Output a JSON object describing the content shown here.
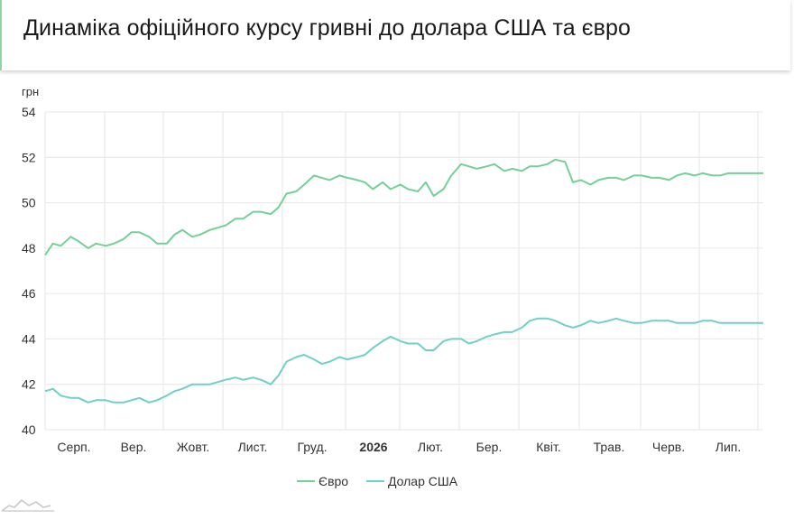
{
  "header": {
    "title": "Динаміка офіційного курсу гривні до долара США та євро"
  },
  "chart_data": {
    "type": "line",
    "title": "Динаміка офіційного курсу гривні до долара США та євро",
    "ylabel": "грн",
    "ylim": [
      40,
      54
    ],
    "yticks": [
      40,
      42,
      44,
      46,
      48,
      50,
      52,
      54
    ],
    "x_tick_labels": [
      "Серп.",
      "Вер.",
      "Жовт.",
      "Лист.",
      "Груд.",
      "2026",
      "Лют.",
      "Бер.",
      "Квіт.",
      "Трав.",
      "Черв.",
      "Лип."
    ],
    "x": [
      0,
      4,
      8,
      13,
      17,
      22,
      26,
      31,
      35,
      40,
      44,
      48,
      53,
      57,
      62,
      66,
      70,
      75,
      79,
      84,
      88,
      92,
      97,
      101,
      106,
      110,
      115,
      119,
      123,
      128,
      132,
      137,
      141,
      145,
      150,
      154,
      159,
      163,
      167,
      172,
      176,
      181,
      185,
      190,
      194,
      198,
      203,
      207,
      212,
      216,
      220,
      225,
      229,
      234,
      238,
      243,
      247,
      251,
      256,
      260,
      265,
      269,
      273,
      278,
      282,
      287,
      291,
      295,
      300,
      304,
      309,
      313,
      318,
      322,
      326,
      331,
      335,
      340,
      344,
      348,
      353,
      357,
      362,
      366
    ],
    "grid": true,
    "legend_position": "bottom-center",
    "series": [
      {
        "name": "Євро",
        "color": "#74cf99",
        "values": [
          47.7,
          48.2,
          48.1,
          48.5,
          48.3,
          48.0,
          48.2,
          48.1,
          48.2,
          48.4,
          48.7,
          48.7,
          48.5,
          48.2,
          48.2,
          48.6,
          48.8,
          48.5,
          48.6,
          48.8,
          48.9,
          49.0,
          49.3,
          49.3,
          49.6,
          49.6,
          49.5,
          49.8,
          50.4,
          50.5,
          50.8,
          51.2,
          51.1,
          51.0,
          51.2,
          51.1,
          51.0,
          50.9,
          50.6,
          50.9,
          50.6,
          50.8,
          50.6,
          50.5,
          50.9,
          50.3,
          50.6,
          51.2,
          51.7,
          51.6,
          51.5,
          51.6,
          51.7,
          51.4,
          51.5,
          51.4,
          51.6,
          51.6,
          51.7,
          51.9,
          51.8,
          50.9,
          51.0,
          50.8,
          51.0,
          51.1,
          51.1,
          51.0,
          51.2,
          51.2,
          51.1,
          51.1,
          51.0,
          51.2,
          51.3,
          51.2,
          51.3,
          51.2,
          51.2,
          51.3,
          51.3,
          51.3,
          51.3,
          51.3
        ]
      },
      {
        "name": "Долар США",
        "color": "#6fd0c8",
        "values": [
          41.7,
          41.8,
          41.5,
          41.4,
          41.4,
          41.2,
          41.3,
          41.3,
          41.2,
          41.2,
          41.3,
          41.4,
          41.2,
          41.3,
          41.5,
          41.7,
          41.8,
          42.0,
          42.0,
          42.0,
          42.1,
          42.2,
          42.3,
          42.2,
          42.3,
          42.2,
          42.0,
          42.4,
          43.0,
          43.2,
          43.3,
          43.1,
          42.9,
          43.0,
          43.2,
          43.1,
          43.2,
          43.3,
          43.6,
          43.9,
          44.1,
          43.9,
          43.8,
          43.8,
          43.5,
          43.5,
          43.9,
          44.0,
          44.0,
          43.8,
          43.9,
          44.1,
          44.2,
          44.3,
          44.3,
          44.5,
          44.8,
          44.9,
          44.9,
          44.8,
          44.6,
          44.5,
          44.6,
          44.8,
          44.7,
          44.8,
          44.9,
          44.8,
          44.7,
          44.7,
          44.8,
          44.8,
          44.8,
          44.7,
          44.7,
          44.7,
          44.8,
          44.8,
          44.7,
          44.7,
          44.7,
          44.7,
          44.7,
          44.7
        ]
      }
    ]
  }
}
